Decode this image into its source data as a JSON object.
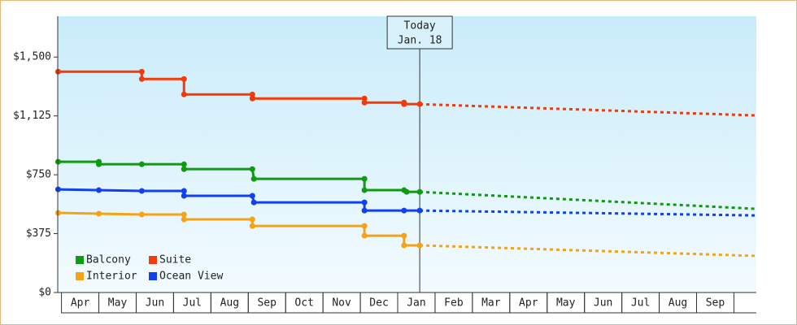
{
  "chart_data": {
    "type": "line",
    "xlim": [
      -0.6,
      18.1
    ],
    "xticks": [
      {
        "value": 0,
        "label": "Apr"
      },
      {
        "value": 1,
        "label": "May"
      },
      {
        "value": 2,
        "label": "Jun"
      },
      {
        "value": 3,
        "label": "Jul"
      },
      {
        "value": 4,
        "label": "Aug"
      },
      {
        "value": 5,
        "label": "Sep"
      },
      {
        "value": 6,
        "label": "Oct"
      },
      {
        "value": 7,
        "label": "Nov"
      },
      {
        "value": 8,
        "label": "Dec"
      },
      {
        "value": 9,
        "label": "Jan"
      },
      {
        "value": 10,
        "label": "Feb"
      },
      {
        "value": 11,
        "label": "Mar"
      },
      {
        "value": 12,
        "label": "Apr"
      },
      {
        "value": 13,
        "label": "May"
      },
      {
        "value": 14,
        "label": "Jun"
      },
      {
        "value": 15,
        "label": "Jul"
      },
      {
        "value": 16,
        "label": "Aug"
      },
      {
        "value": 17,
        "label": "Sep"
      }
    ],
    "ylim": [
      0,
      1760
    ],
    "yticks": [
      {
        "value": 0,
        "label": "$0"
      },
      {
        "value": 375,
        "label": "$375"
      },
      {
        "value": 750,
        "label": "$750"
      },
      {
        "value": 1125,
        "label": "$1,125"
      },
      {
        "value": 1500,
        "label": "$1,500"
      }
    ],
    "today": {
      "x": 9.09,
      "label": "Today",
      "date": "Jan. 18"
    },
    "legend": "bottom-left",
    "series": [
      {
        "name": "Balcony",
        "color": "#109a10",
        "x": [
          -0.59,
          0.5,
          0.5,
          1.65,
          2.78,
          2.78,
          4.61,
          4.65,
          7.61,
          7.61,
          8.67,
          8.74,
          9.09
        ],
        "values": [
          833,
          833,
          817,
          817,
          817,
          786,
          786,
          724,
          724,
          652,
          652,
          641,
          641
        ],
        "projection_x": [
          9.09,
          18.09
        ],
        "projection_values": [
          641,
          533
        ]
      },
      {
        "name": "Suite",
        "color": "#f53a0a",
        "x": [
          -0.59,
          1.65,
          1.65,
          2.78,
          2.78,
          4.61,
          4.61,
          7.61,
          7.61,
          8.67,
          8.67,
          9.09
        ],
        "values": [
          1407,
          1407,
          1360,
          1360,
          1262,
          1262,
          1236,
          1236,
          1210,
          1210,
          1200,
          1200
        ],
        "projection_x": [
          9.09,
          18.09
        ],
        "projection_values": [
          1200,
          1128
        ]
      },
      {
        "name": "Interior",
        "color": "#f5a315",
        "x": [
          -0.59,
          0.5,
          1.65,
          2.78,
          2.78,
          4.61,
          4.61,
          7.61,
          7.61,
          8.67,
          8.67,
          9.09
        ],
        "values": [
          507,
          502,
          497,
          497,
          466,
          466,
          424,
          424,
          362,
          362,
          300,
          300
        ],
        "projection_x": [
          9.09,
          18.09
        ],
        "projection_values": [
          300,
          233
        ]
      },
      {
        "name": "Ocean View",
        "color": "#1040f0",
        "x": [
          -0.59,
          0.5,
          1.65,
          2.78,
          2.78,
          4.61,
          4.65,
          7.61,
          7.61,
          8.67,
          9.09
        ],
        "values": [
          657,
          652,
          647,
          647,
          616,
          616,
          574,
          574,
          522,
          522,
          522
        ],
        "projection_x": [
          9.09,
          18.09
        ],
        "projection_values": [
          522,
          491
        ]
      }
    ]
  }
}
